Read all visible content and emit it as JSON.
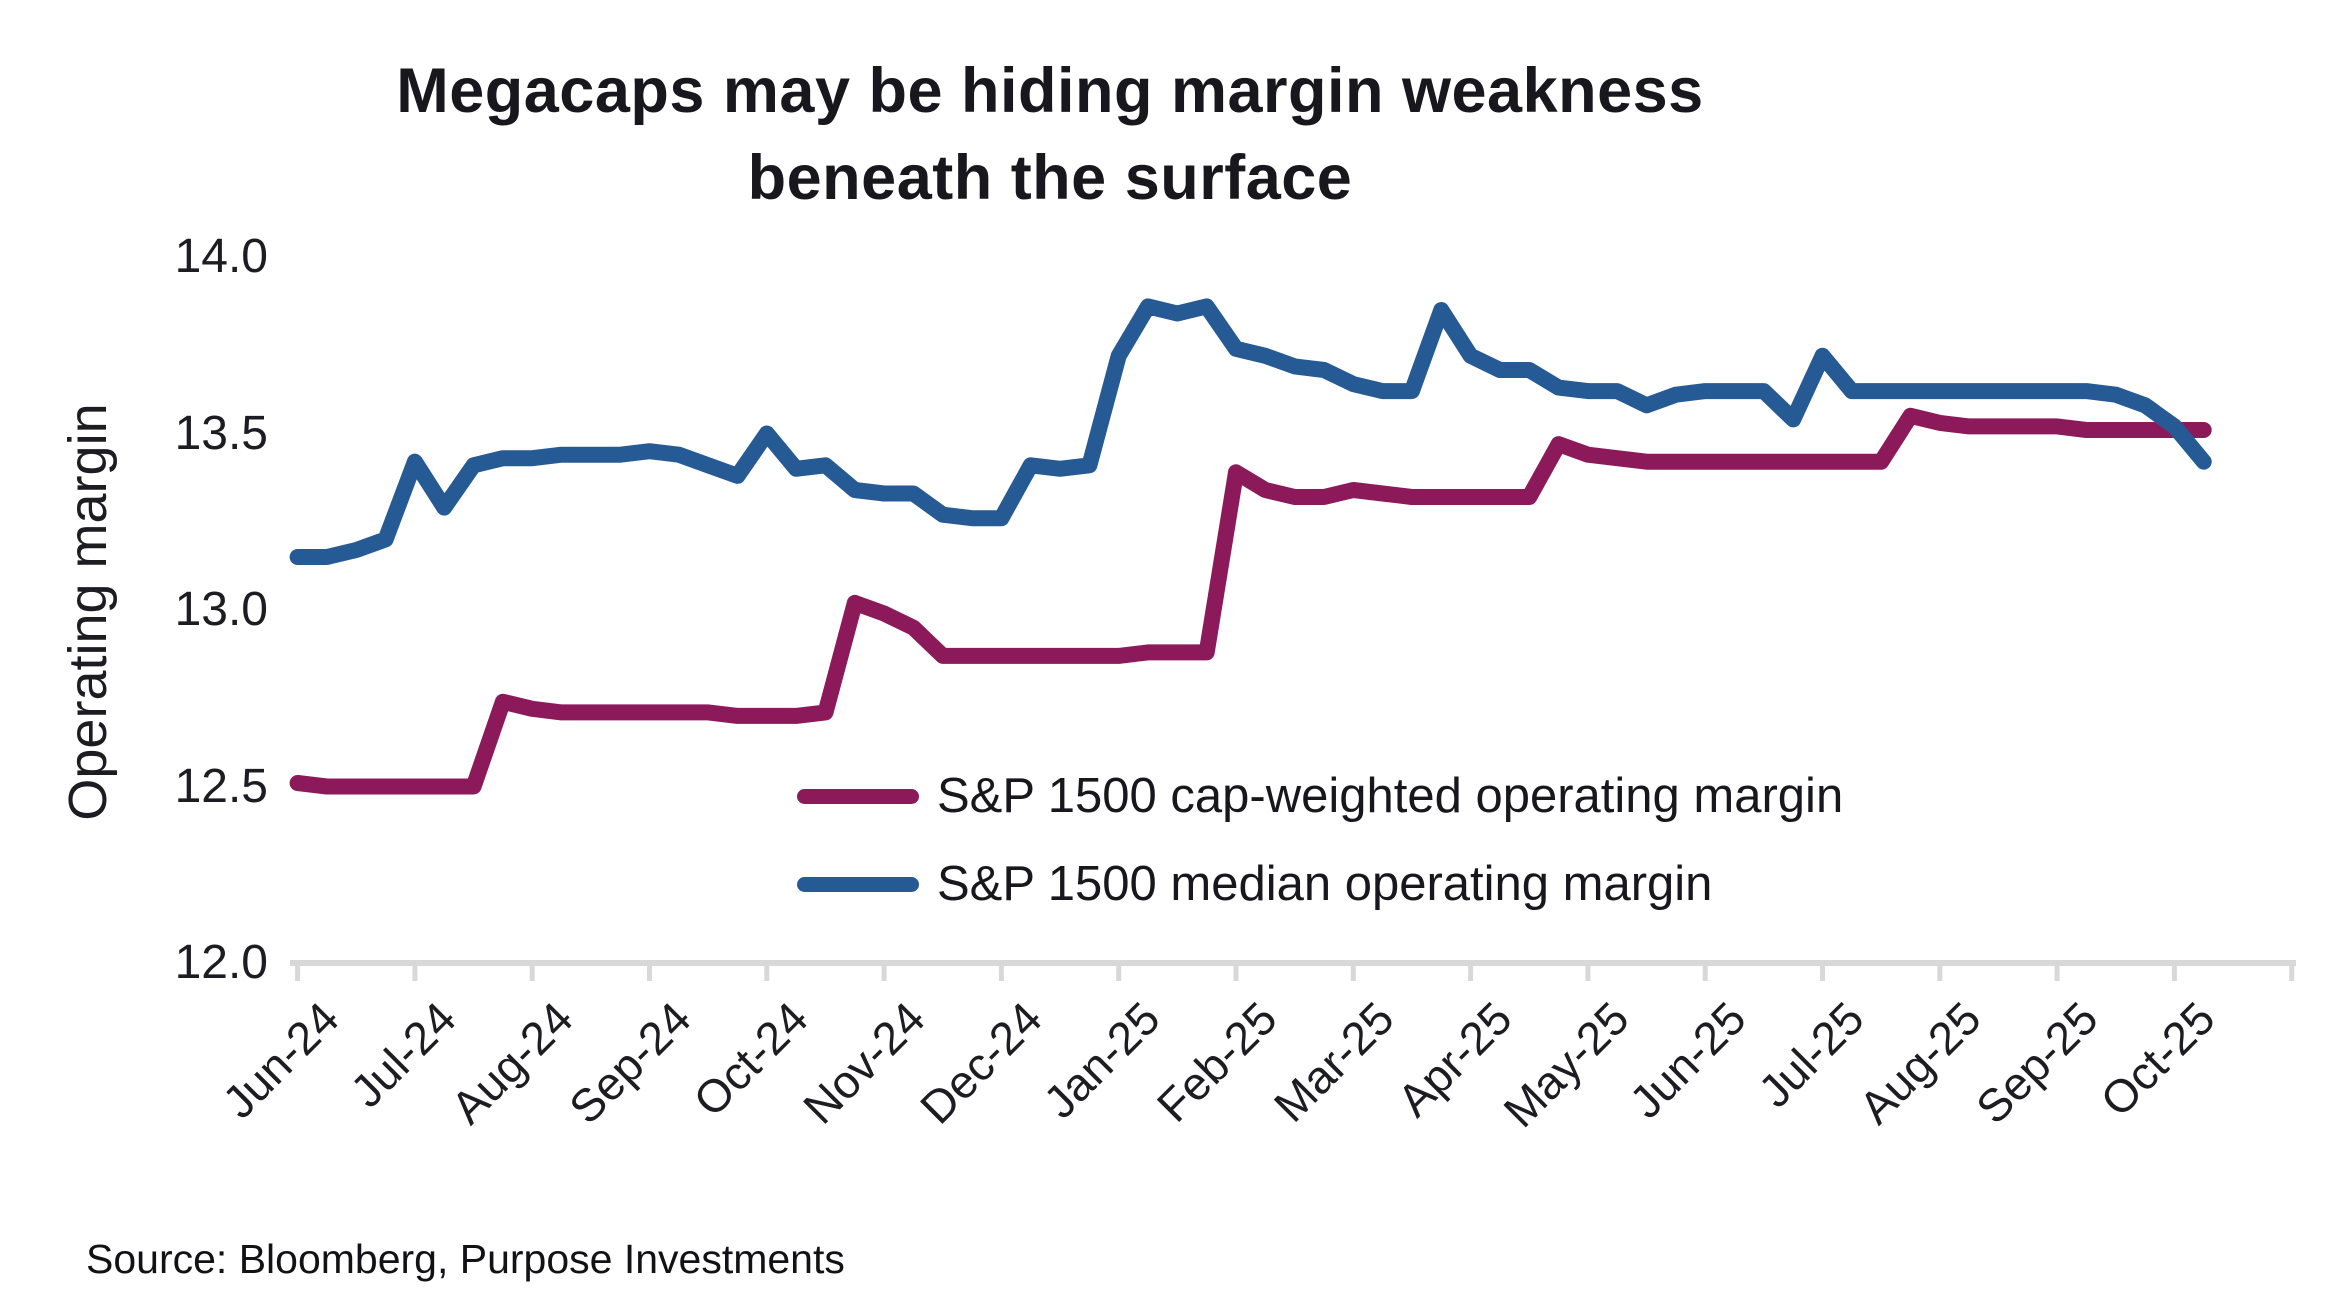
{
  "title": {
    "line1": "Megacaps may be hiding margin weakness",
    "line2": "beneath the surface"
  },
  "source": {
    "text": "Source: Bloomberg, Purpose Investments"
  },
  "colors": {
    "cap_weighted_line": "#8C1A5B",
    "median_line": "#265A94",
    "axis_line": "#d8d8d8",
    "text": "#17171d"
  },
  "chart_data": {
    "type": "line",
    "title": "Megacaps may be hiding margin weakness beneath the surface",
    "xlabel": "",
    "ylabel": "Operating margin",
    "ylim": [
      12.0,
      14.0
    ],
    "y_ticks": [
      14.0,
      13.5,
      13.0,
      12.5,
      12.0
    ],
    "y_tick_labels": [
      "14.0",
      "13.5",
      "13.0",
      "12.5",
      "12.0"
    ],
    "x_tick_labels": [
      "Jun-24",
      "Jul-24",
      "Aug-24",
      "Sep-24",
      "Oct-24",
      "Nov-24",
      "Dec-24",
      "Jan-25",
      "Feb-25",
      "Mar-25",
      "Apr-25",
      "May-25",
      "Jun-25",
      "Jul-25",
      "Aug-25",
      "Sep-25",
      "Oct-25"
    ],
    "points_per_month": 4,
    "x_note": "weekly samples; point i sits at month index i/4 starting at Jun-24; data ends early Oct-25",
    "grid": false,
    "legend_position": "inside lower-center",
    "series": [
      {
        "name": "S&P 1500 cap-weighted operating margin",
        "color": "#8C1A5B",
        "values": [
          12.51,
          12.5,
          12.5,
          12.5,
          12.5,
          12.5,
          12.5,
          12.74,
          12.72,
          12.71,
          12.71,
          12.71,
          12.71,
          12.71,
          12.71,
          12.7,
          12.7,
          12.7,
          12.71,
          13.02,
          12.99,
          12.95,
          12.87,
          12.87,
          12.87,
          12.87,
          12.87,
          12.87,
          12.87,
          12.88,
          12.88,
          12.88,
          13.39,
          13.34,
          13.32,
          13.32,
          13.34,
          13.33,
          13.32,
          13.32,
          13.32,
          13.32,
          13.32,
          13.47,
          13.44,
          13.43,
          13.42,
          13.42,
          13.42,
          13.42,
          13.42,
          13.42,
          13.42,
          13.42,
          13.42,
          13.55,
          13.53,
          13.52,
          13.52,
          13.52,
          13.52,
          13.51,
          13.51,
          13.51,
          13.51,
          13.51
        ]
      },
      {
        "name": "S&P 1500 median operating margin",
        "color": "#265A94",
        "values": [
          13.15,
          13.15,
          13.17,
          13.2,
          13.42,
          13.29,
          13.41,
          13.43,
          13.43,
          13.44,
          13.44,
          13.44,
          13.45,
          13.44,
          13.41,
          13.38,
          13.5,
          13.4,
          13.41,
          13.34,
          13.33,
          13.33,
          13.27,
          13.26,
          13.26,
          13.41,
          13.4,
          13.41,
          13.72,
          13.86,
          13.84,
          13.86,
          13.74,
          13.72,
          13.69,
          13.68,
          13.64,
          13.62,
          13.62,
          13.85,
          13.72,
          13.68,
          13.68,
          13.63,
          13.62,
          13.62,
          13.58,
          13.61,
          13.62,
          13.62,
          13.62,
          13.54,
          13.72,
          13.62,
          13.62,
          13.62,
          13.62,
          13.62,
          13.62,
          13.62,
          13.62,
          13.62,
          13.61,
          13.58,
          13.52,
          13.42
        ]
      }
    ]
  }
}
